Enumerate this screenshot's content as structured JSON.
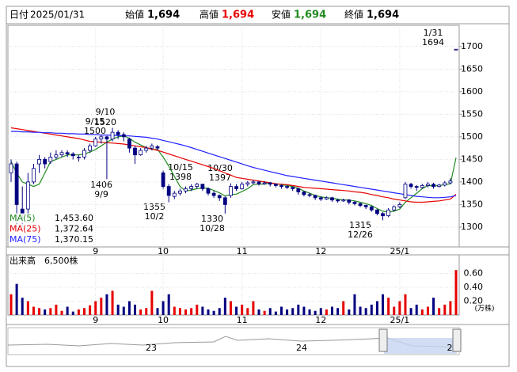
{
  "header": {
    "date_label": "日付",
    "date": "2025/01/31",
    "open_label": "始値",
    "open": "1,694",
    "high_label": "高値",
    "high": "1,694",
    "low_label": "安値",
    "low": "1,694",
    "close_label": "終値",
    "close": "1,694"
  },
  "chart_data": {
    "type": "candlestick",
    "categories": [
      null,
      null,
      null,
      null,
      null,
      null,
      null,
      null,
      null,
      null,
      null,
      null,
      null,
      null,
      null,
      "9",
      null,
      null,
      null,
      null,
      null,
      null,
      null,
      null,
      null,
      null,
      null,
      "10",
      null,
      null,
      null,
      null,
      null,
      null,
      null,
      null,
      null,
      null,
      null,
      null,
      null,
      "11",
      null,
      null,
      null,
      null,
      null,
      null,
      null,
      null,
      null,
      null,
      null,
      null,
      null,
      "12",
      null,
      null,
      null,
      null,
      null,
      null,
      null,
      null,
      null,
      null,
      null,
      null,
      null,
      "25/1",
      null,
      null,
      null,
      null,
      null,
      null,
      null,
      null,
      null,
      null
    ],
    "candles": [
      [
        1420,
        1450,
        1400,
        1440
      ],
      [
        1440,
        1445,
        1300,
        1350
      ],
      [
        1340,
        1390,
        1300,
        1330
      ],
      [
        1340,
        1420,
        1330,
        1400
      ],
      [
        1400,
        1440,
        1395,
        1430
      ],
      [
        1440,
        1460,
        1420,
        1450
      ],
      [
        1450,
        1455,
        1430,
        1440
      ],
      [
        1445,
        1465,
        1440,
        1455
      ],
      [
        1455,
        1470,
        1450,
        1460
      ],
      [
        1460,
        1470,
        1455,
        1465
      ],
      [
        1465,
        1470,
        1455,
        1462
      ],
      [
        1462,
        1466,
        1450,
        1458
      ],
      [
        1455,
        1460,
        1445,
        1455
      ],
      [
        1455,
        1475,
        1450,
        1470
      ],
      [
        1470,
        1485,
        1465,
        1480
      ],
      [
        1480,
        1500,
        1478,
        1495
      ],
      [
        1495,
        1505,
        1485,
        1500
      ],
      [
        1500,
        1502,
        1406,
        1495
      ],
      [
        1495,
        1520,
        1490,
        1510
      ],
      [
        1510,
        1515,
        1495,
        1505
      ],
      [
        1505,
        1510,
        1490,
        1500
      ],
      [
        1495,
        1498,
        1465,
        1475
      ],
      [
        1475,
        1480,
        1440,
        1460
      ],
      [
        1460,
        1475,
        1458,
        1470
      ],
      [
        1470,
        1480,
        1465,
        1475
      ],
      [
        1475,
        1485,
        1470,
        1480
      ],
      [
        1478,
        1482,
        1470,
        1475
      ],
      [
        1420,
        1425,
        1385,
        1390
      ],
      [
        1390,
        1395,
        1355,
        1370
      ],
      [
        1368,
        1380,
        1362,
        1375
      ],
      [
        1375,
        1385,
        1370,
        1380
      ],
      [
        1380,
        1390,
        1375,
        1385
      ],
      [
        1385,
        1395,
        1380,
        1390
      ],
      [
        1390,
        1398,
        1385,
        1395
      ],
      [
        1395,
        1396,
        1380,
        1385
      ],
      [
        1385,
        1388,
        1370,
        1375
      ],
      [
        1375,
        1380,
        1365,
        1370
      ],
      [
        1370,
        1372,
        1358,
        1365
      ],
      [
        1365,
        1368,
        1330,
        1350
      ],
      [
        1370,
        1397,
        1365,
        1390
      ],
      [
        1390,
        1395,
        1380,
        1385
      ],
      [
        1385,
        1400,
        1383,
        1395
      ],
      [
        1395,
        1402,
        1390,
        1398
      ],
      [
        1398,
        1405,
        1395,
        1400
      ],
      [
        1400,
        1402,
        1392,
        1396
      ],
      [
        1396,
        1402,
        1394,
        1398
      ],
      [
        1398,
        1400,
        1390,
        1395
      ],
      [
        1395,
        1397,
        1388,
        1392
      ],
      [
        1392,
        1395,
        1385,
        1390
      ],
      [
        1390,
        1392,
        1384,
        1388
      ],
      [
        1388,
        1390,
        1380,
        1385
      ],
      [
        1385,
        1387,
        1372,
        1378
      ],
      [
        1378,
        1380,
        1368,
        1372
      ],
      [
        1372,
        1376,
        1366,
        1370
      ],
      [
        1370,
        1372,
        1360,
        1365
      ],
      [
        1365,
        1368,
        1358,
        1362
      ],
      [
        1362,
        1368,
        1360,
        1365
      ],
      [
        1365,
        1367,
        1356,
        1360
      ],
      [
        1360,
        1362,
        1354,
        1358
      ],
      [
        1358,
        1363,
        1356,
        1360
      ],
      [
        1360,
        1362,
        1350,
        1355
      ],
      [
        1355,
        1358,
        1348,
        1352
      ],
      [
        1352,
        1354,
        1344,
        1348
      ],
      [
        1348,
        1350,
        1340,
        1345
      ],
      [
        1345,
        1347,
        1334,
        1338
      ],
      [
        1338,
        1340,
        1326,
        1330
      ],
      [
        1330,
        1333,
        1315,
        1325
      ],
      [
        1325,
        1342,
        1322,
        1338
      ],
      [
        1338,
        1348,
        1335,
        1345
      ],
      [
        1345,
        1355,
        1342,
        1350
      ],
      [
        1365,
        1400,
        1362,
        1395
      ],
      [
        1395,
        1398,
        1385,
        1390
      ],
      [
        1390,
        1393,
        1380,
        1388
      ],
      [
        1388,
        1396,
        1385,
        1392
      ],
      [
        1392,
        1400,
        1388,
        1395
      ],
      [
        1395,
        1398,
        1385,
        1390
      ],
      [
        1390,
        1396,
        1388,
        1393
      ],
      [
        1393,
        1402,
        1390,
        1398
      ],
      [
        1398,
        1408,
        1395,
        1402
      ],
      [
        1694,
        1694,
        1694,
        1694
      ]
    ],
    "candle_color": "#000080",
    "series": [
      {
        "name": "MA(5)",
        "color": "#228b22",
        "last_label": "1,453.60",
        "values": [
          1445,
          1420,
          1400,
          1395,
          1390,
          1395,
          1420,
          1445,
          1450,
          1455,
          1460,
          1460,
          1460,
          1462,
          1466,
          1472,
          1480,
          1488,
          1495,
          1500,
          1502,
          1497,
          1488,
          1482,
          1476,
          1472,
          1472,
          1455,
          1435,
          1412,
          1390,
          1380,
          1382,
          1385,
          1387,
          1386,
          1381,
          1376,
          1369,
          1372,
          1373,
          1379,
          1385,
          1394,
          1395,
          1395,
          1398,
          1396,
          1394,
          1392,
          1390,
          1386,
          1380,
          1375,
          1370,
          1367,
          1365,
          1364,
          1362,
          1360,
          1360,
          1358,
          1355,
          1352,
          1348,
          1341,
          1335,
          1333,
          1335,
          1340,
          1355,
          1365,
          1375,
          1385,
          1392,
          1391,
          1392,
          1394,
          1396,
          1453.6
        ]
      },
      {
        "name": "MA(25)",
        "color": "#e60000",
        "last_label": "1,372.64",
        "values": [
          1520,
          1518,
          1516,
          1514,
          1512,
          1510,
          1508,
          1506,
          1504,
          1502,
          1500,
          1498,
          1496,
          1493,
          1490,
          1489,
          1488,
          1487,
          1486,
          1485,
          1484,
          1482,
          1480,
          1478,
          1476,
          1473,
          1470,
          1466,
          1462,
          1458,
          1454,
          1450,
          1446,
          1442,
          1438,
          1434,
          1430,
          1425,
          1420,
          1415,
          1410,
          1408,
          1406,
          1404,
          1402,
          1400,
          1398,
          1396,
          1395,
          1394,
          1392,
          1390,
          1388,
          1387,
          1386,
          1385,
          1384,
          1383,
          1382,
          1381,
          1380,
          1378,
          1377,
          1375,
          1372,
          1370,
          1367,
          1365,
          1362,
          1360,
          1358,
          1356,
          1355,
          1355,
          1356,
          1357,
          1358,
          1360,
          1362,
          1372.64
        ]
      },
      {
        "name": "MA(75)",
        "color": "#2020ff",
        "last_label": "1,370.15",
        "values": [
          1512,
          1512,
          1511,
          1511,
          1510,
          1510,
          1509,
          1509,
          1508,
          1508,
          1507,
          1507,
          1506,
          1506,
          1505,
          1505,
          1504,
          1504,
          1503,
          1503,
          1502,
          1502,
          1501,
          1500,
          1499,
          1497,
          1495,
          1492,
          1489,
          1486,
          1483,
          1480,
          1476,
          1472,
          1468,
          1464,
          1460,
          1456,
          1452,
          1448,
          1444,
          1440,
          1436,
          1432,
          1429,
          1426,
          1423,
          1420,
          1417,
          1414,
          1412,
          1410,
          1408,
          1406,
          1404,
          1402,
          1400,
          1398,
          1396,
          1394,
          1392,
          1390,
          1388,
          1386,
          1384,
          1382,
          1380,
          1378,
          1376,
          1374,
          1372,
          1370,
          1368,
          1367,
          1366,
          1365,
          1365,
          1366,
          1367,
          1370.15
        ]
      }
    ],
    "ylim": [
      1256,
      1747
    ],
    "yticks": [
      1300,
      1350,
      1400,
      1450,
      1500,
      1550,
      1600,
      1650,
      1700
    ],
    "annotations": [
      {
        "date": "9/10",
        "value": 1520
      },
      {
        "date": "9/15",
        "value": 1500
      },
      {
        "date": "9/9",
        "value": 1406
      },
      {
        "date": "10/2",
        "value": 1355
      },
      {
        "date": "10/15",
        "value": 1398
      },
      {
        "date": "10/28",
        "value": 1330
      },
      {
        "date": "10/30",
        "value": 1397
      },
      {
        "date": "12/26",
        "value": 1315
      },
      {
        "date": "1/31",
        "value": 1694
      }
    ],
    "volume": {
      "title": "出来高",
      "last_label": "6,500株",
      "unit": "(万株)",
      "up_color": "#e60000",
      "down_color": "#000080",
      "values": [
        0.3,
        0.45,
        0.25,
        0.2,
        0.12,
        0.1,
        0.08,
        0.1,
        0.15,
        0.06,
        0.12,
        0.05,
        0.08,
        0.1,
        0.14,
        0.2,
        0.25,
        0.3,
        0.35,
        0.15,
        0.12,
        0.2,
        0.15,
        0.08,
        0.1,
        0.35,
        0.1,
        0.2,
        0.3,
        0.12,
        0.1,
        0.08,
        0.1,
        0.15,
        0.12,
        0.08,
        0.06,
        0.1,
        0.25,
        0.2,
        0.12,
        0.15,
        0.1,
        0.2,
        0.08,
        0.06,
        0.1,
        0.05,
        0.12,
        0.08,
        0.1,
        0.15,
        0.12,
        0.08,
        0.06,
        0.1,
        0.08,
        0.12,
        0.1,
        0.2,
        0.08,
        0.3,
        0.12,
        0.1,
        0.15,
        0.2,
        0.3,
        0.25,
        0.12,
        0.2,
        0.3,
        0.1,
        0.15,
        0.08,
        0.12,
        0.25,
        0.1,
        0.15,
        0.2,
        0.65
      ],
      "ylim": [
        0,
        0.87
      ],
      "yticks": [
        {
          "value": 0.2,
          "label": "0.20"
        },
        {
          "value": 0.4,
          "label": "0.40"
        },
        {
          "value": 0.6,
          "label": "0.60"
        }
      ]
    },
    "navigator": {
      "labels": [
        "23",
        "24",
        "2"
      ]
    }
  }
}
